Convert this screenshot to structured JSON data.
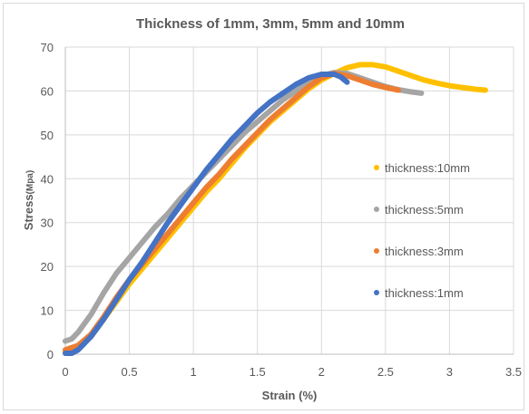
{
  "chart_data": {
    "type": "scatter",
    "title": "Thickness of 1mm, 3mm, 5mm and 10mm",
    "xlabel": "Strain (%)",
    "ylabel_main": "Stress",
    "ylabel_unit": "(Mpa)",
    "xlim": [
      0,
      3.5
    ],
    "ylim": [
      0,
      70
    ],
    "xticks": [
      0,
      0.5,
      1,
      1.5,
      2,
      2.5,
      3,
      3.5
    ],
    "xtick_labels": [
      "0",
      "0.5",
      "1",
      "1.5",
      "2",
      "2.5",
      "3",
      "3.5"
    ],
    "yticks": [
      0,
      10,
      20,
      30,
      40,
      50,
      60,
      70
    ],
    "ytick_labels": [
      "0",
      "10",
      "20",
      "30",
      "40",
      "50",
      "60",
      "70"
    ],
    "grid": true,
    "legend_position": "right",
    "series": [
      {
        "name": "thickness:10mm",
        "color": "#FFC000",
        "points": [
          [
            0,
            0.5
          ],
          [
            0.1,
            1.5
          ],
          [
            0.2,
            4
          ],
          [
            0.3,
            8
          ],
          [
            0.4,
            12
          ],
          [
            0.5,
            16
          ],
          [
            0.6,
            19.5
          ],
          [
            0.7,
            23
          ],
          [
            0.8,
            26.5
          ],
          [
            0.9,
            30
          ],
          [
            1.0,
            33.5
          ],
          [
            1.1,
            37
          ],
          [
            1.2,
            40
          ],
          [
            1.3,
            43.5
          ],
          [
            1.4,
            47
          ],
          [
            1.5,
            50
          ],
          [
            1.6,
            53
          ],
          [
            1.7,
            55.5
          ],
          [
            1.8,
            58
          ],
          [
            1.9,
            60.5
          ],
          [
            2.0,
            62.5
          ],
          [
            2.1,
            64
          ],
          [
            2.2,
            65.3
          ],
          [
            2.3,
            66
          ],
          [
            2.4,
            66
          ],
          [
            2.5,
            65.5
          ],
          [
            2.6,
            64.5
          ],
          [
            2.7,
            63.5
          ],
          [
            2.8,
            62.5
          ],
          [
            2.9,
            61.8
          ],
          [
            3.0,
            61.2
          ],
          [
            3.1,
            60.8
          ],
          [
            3.2,
            60.4
          ],
          [
            3.28,
            60.2
          ]
        ]
      },
      {
        "name": "thickness:5mm",
        "color": "#A5A5A5",
        "points": [
          [
            0,
            3
          ],
          [
            0.05,
            3.5
          ],
          [
            0.1,
            5
          ],
          [
            0.2,
            9
          ],
          [
            0.3,
            14
          ],
          [
            0.4,
            18.5
          ],
          [
            0.5,
            22
          ],
          [
            0.6,
            25.5
          ],
          [
            0.7,
            29
          ],
          [
            0.8,
            32
          ],
          [
            0.9,
            35.5
          ],
          [
            1.0,
            38.5
          ],
          [
            1.1,
            41.5
          ],
          [
            1.2,
            44.5
          ],
          [
            1.3,
            47.5
          ],
          [
            1.4,
            50.5
          ],
          [
            1.5,
            53
          ],
          [
            1.6,
            55.5
          ],
          [
            1.7,
            58
          ],
          [
            1.8,
            60
          ],
          [
            1.9,
            62
          ],
          [
            2.0,
            63.5
          ],
          [
            2.1,
            64.2
          ],
          [
            2.2,
            64
          ],
          [
            2.3,
            63
          ],
          [
            2.4,
            62
          ],
          [
            2.5,
            61
          ],
          [
            2.6,
            60.3
          ],
          [
            2.7,
            59.8
          ],
          [
            2.78,
            59.5
          ]
        ]
      },
      {
        "name": "thickness:3mm",
        "color": "#ED7D31",
        "points": [
          [
            0,
            1
          ],
          [
            0.1,
            2
          ],
          [
            0.2,
            4.5
          ],
          [
            0.3,
            8.5
          ],
          [
            0.4,
            13
          ],
          [
            0.5,
            17
          ],
          [
            0.6,
            20.5
          ],
          [
            0.7,
            24
          ],
          [
            0.8,
            27.5
          ],
          [
            0.9,
            31
          ],
          [
            1.0,
            34.5
          ],
          [
            1.1,
            38
          ],
          [
            1.2,
            41
          ],
          [
            1.3,
            44.5
          ],
          [
            1.4,
            47.5
          ],
          [
            1.5,
            50.5
          ],
          [
            1.6,
            53.5
          ],
          [
            1.7,
            56
          ],
          [
            1.8,
            58.5
          ],
          [
            1.9,
            61
          ],
          [
            2.0,
            63
          ],
          [
            2.1,
            64
          ],
          [
            2.2,
            63.5
          ],
          [
            2.3,
            62.5
          ],
          [
            2.4,
            61.5
          ],
          [
            2.5,
            60.8
          ],
          [
            2.6,
            60.2
          ]
        ]
      },
      {
        "name": "thickness:1mm",
        "color": "#4472C4",
        "points": [
          [
            0,
            0.2
          ],
          [
            0.05,
            0.2
          ],
          [
            0.1,
            1
          ],
          [
            0.2,
            4
          ],
          [
            0.3,
            8
          ],
          [
            0.4,
            12.5
          ],
          [
            0.5,
            17
          ],
          [
            0.6,
            21
          ],
          [
            0.7,
            25.5
          ],
          [
            0.8,
            30
          ],
          [
            0.9,
            34
          ],
          [
            1.0,
            38
          ],
          [
            1.1,
            42
          ],
          [
            1.2,
            45.5
          ],
          [
            1.3,
            49
          ],
          [
            1.4,
            52
          ],
          [
            1.5,
            55
          ],
          [
            1.6,
            57.5
          ],
          [
            1.7,
            59.5
          ],
          [
            1.8,
            61.5
          ],
          [
            1.9,
            63
          ],
          [
            2.0,
            63.8
          ],
          [
            2.1,
            63.8
          ],
          [
            2.15,
            63.2
          ],
          [
            2.2,
            62
          ]
        ]
      }
    ]
  }
}
